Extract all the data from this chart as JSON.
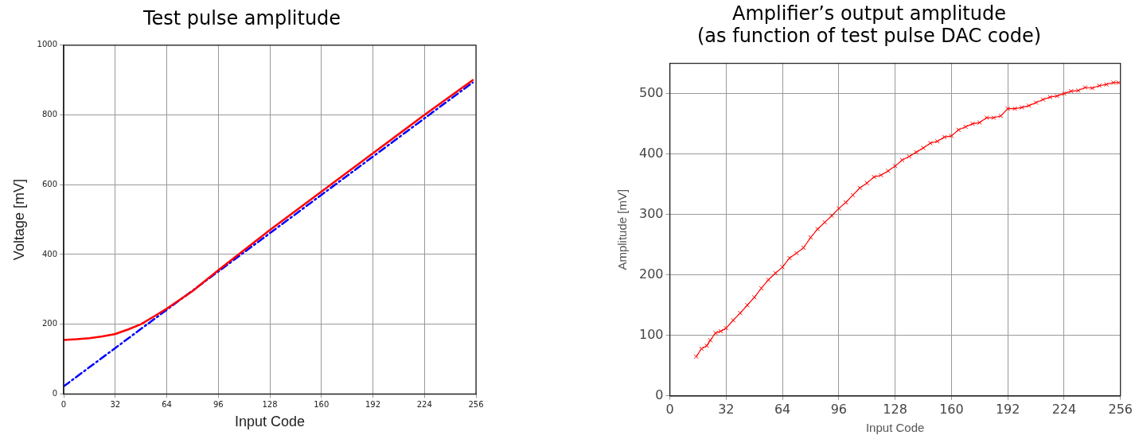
{
  "chart_data": [
    {
      "type": "line",
      "title": "Test pulse amplitude",
      "xlabel": "Input Code",
      "ylabel": "Voltage [mV]",
      "xlim": [
        0,
        256
      ],
      "xticks": [
        0,
        32,
        64,
        96,
        128,
        160,
        192,
        224,
        256
      ],
      "ylim": [
        0,
        1000
      ],
      "yticks": [
        0,
        200,
        400,
        600,
        800,
        1000
      ],
      "grid": true,
      "series": [
        {
          "color": "#ff0000",
          "marker": "none",
          "line_style": "solid",
          "x": [
            0,
            8,
            16,
            24,
            32,
            40,
            48,
            56,
            64,
            80,
            96,
            128,
            160,
            192,
            224,
            254
          ],
          "values": [
            155,
            157,
            160,
            165,
            172,
            185,
            200,
            222,
            245,
            295,
            355,
            470,
            580,
            690,
            800,
            900
          ]
        },
        {
          "color": "#0000ff",
          "marker": "none",
          "line_style": "dashed",
          "x": [
            0,
            254
          ],
          "values": [
            22,
            893
          ]
        }
      ]
    },
    {
      "type": "line",
      "title": "Amplifier’s output amplitude\n(as function of test pulse DAC code)",
      "xlabel": "Input Code",
      "ylabel": "Amplitude [mV]",
      "xlim": [
        0,
        256
      ],
      "xticks": [
        0,
        32,
        64,
        96,
        128,
        160,
        192,
        224,
        256
      ],
      "ylim": [
        0,
        550
      ],
      "yticks": [
        0,
        100,
        200,
        300,
        400,
        500
      ],
      "grid": true,
      "series": [
        {
          "color": "#ff0000",
          "marker": "cross",
          "line_style": "solid",
          "x": [
            15,
            18,
            21,
            23,
            26,
            29,
            32,
            36,
            40,
            44,
            48,
            52,
            56,
            60,
            64,
            68,
            72,
            76,
            80,
            84,
            88,
            92,
            96,
            100,
            104,
            108,
            112,
            116,
            120,
            124,
            128,
            132,
            136,
            140,
            144,
            148,
            152,
            156,
            160,
            164,
            168,
            172,
            176,
            180,
            184,
            188,
            192,
            196,
            200,
            204,
            208,
            212,
            216,
            220,
            224,
            228,
            232,
            236,
            240,
            244,
            248,
            252,
            255
          ],
          "values": [
            65,
            78,
            83,
            92,
            104,
            107,
            112,
            125,
            137,
            150,
            163,
            178,
            192,
            203,
            213,
            228,
            236,
            245,
            262,
            276,
            287,
            298,
            310,
            320,
            332,
            344,
            352,
            362,
            365,
            372,
            380,
            390,
            396,
            403,
            410,
            418,
            421,
            428,
            430,
            440,
            445,
            450,
            452,
            460,
            460,
            463,
            475,
            475,
            477,
            480,
            485,
            490,
            494,
            496,
            500,
            504,
            505,
            510,
            509,
            513,
            515,
            518,
            518
          ]
        }
      ]
    }
  ]
}
